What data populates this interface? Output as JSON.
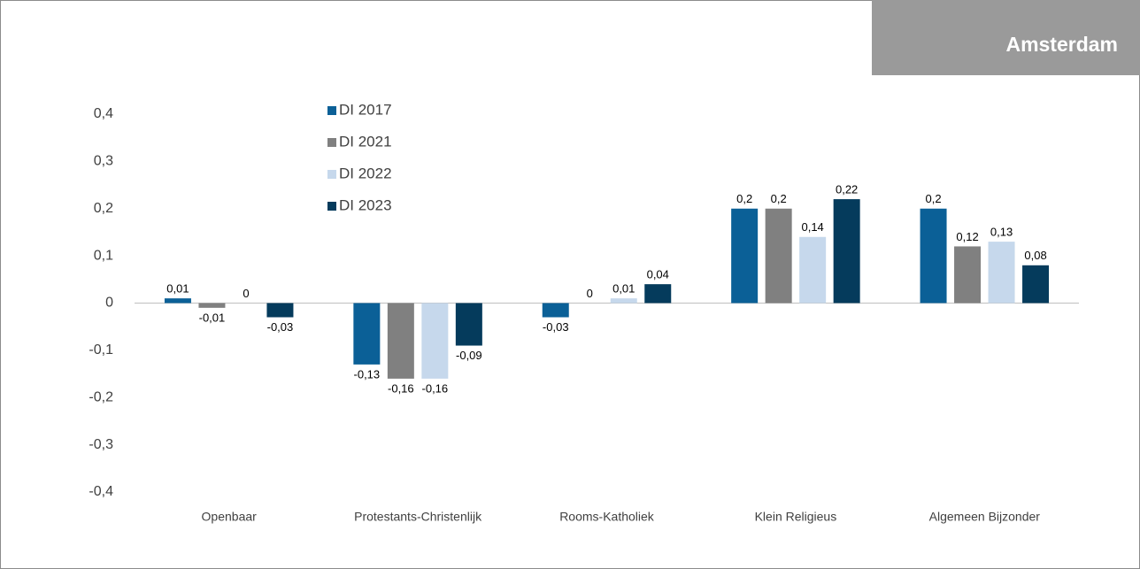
{
  "chart_data": {
    "type": "bar",
    "title": "Amsterdam",
    "categories": [
      "Openbaar",
      "Protestants-Christenlijk",
      "Rooms-Katholiek",
      "Klein Religieus",
      "Algemeen Bijzonder"
    ],
    "series": [
      {
        "name": "DI 2017",
        "color": "#0b6097",
        "values": [
          0.01,
          -0.13,
          -0.03,
          0.2,
          0.2
        ],
        "value_labels": [
          "0,01",
          "-0,13",
          "-0,03",
          "0,2",
          "0,2"
        ]
      },
      {
        "name": "DI 2021",
        "color": "#808080",
        "values": [
          -0.01,
          -0.16,
          0,
          0.2,
          0.12
        ],
        "value_labels": [
          "-0,01",
          "-0,16",
          "0",
          "0,2",
          "0,12"
        ]
      },
      {
        "name": "DI 2022",
        "color": "#c6d8ec",
        "values": [
          0,
          -0.16,
          0.01,
          0.14,
          0.13
        ],
        "value_labels": [
          "0",
          "-0,16",
          "0,01",
          "0,14",
          "0,13"
        ]
      },
      {
        "name": "DI 2023",
        "color": "#053b5c",
        "values": [
          -0.03,
          -0.09,
          0.04,
          0.22,
          0.08
        ],
        "value_labels": [
          "-0,03",
          "-0,09",
          "0,04",
          "0,22",
          "0,08"
        ]
      }
    ],
    "ylim": [
      -0.4,
      0.4
    ],
    "yticks": [
      {
        "value": 0.4,
        "label": "0,4"
      },
      {
        "value": 0.3,
        "label": "0,3"
      },
      {
        "value": 0.2,
        "label": "0,2"
      },
      {
        "value": 0.1,
        "label": "0,1"
      },
      0,
      {
        "value": -0.1,
        "label": "-0,1"
      },
      {
        "value": -0.2,
        "label": "-0,2"
      },
      {
        "value": -0.3,
        "label": "-0,3"
      },
      {
        "value": -0.4,
        "label": "-0,4"
      }
    ],
    "grid": false,
    "legend": "top-left"
  }
}
